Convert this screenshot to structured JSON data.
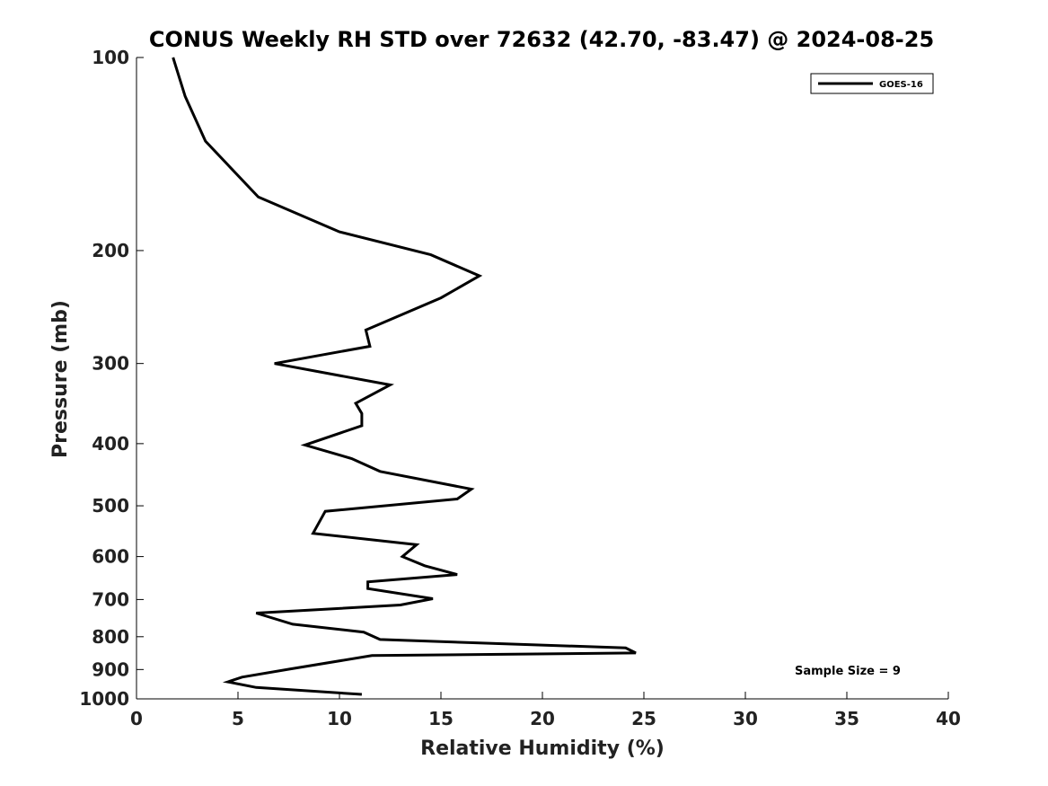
{
  "chart_data": {
    "type": "line",
    "title": "CONUS Weekly RH STD over 72632 (42.70, -83.47) @ 2024-08-25",
    "xlabel": "Relative Humidity (%)",
    "ylabel": "Pressure (mb)",
    "xlim": [
      0,
      40
    ],
    "ylim": [
      1000,
      100
    ],
    "yscale": "log",
    "x_ticks": [
      "0",
      "5",
      "10",
      "15",
      "20",
      "25",
      "30",
      "35",
      "40"
    ],
    "y_ticks": [
      "100",
      "200",
      "300",
      "400",
      "500",
      "600",
      "700",
      "800",
      "900",
      "1000"
    ],
    "grid": false,
    "legend": {
      "position": "top-right",
      "entries": [
        "GOES-16"
      ]
    },
    "annotation": "Sample Size = 9",
    "series": [
      {
        "name": "GOES-16",
        "color": "#000000",
        "points": [
          [
            1.8,
            100
          ],
          [
            2.4,
            115
          ],
          [
            3.4,
            135
          ],
          [
            6.0,
            165
          ],
          [
            10.0,
            187
          ],
          [
            14.5,
            203
          ],
          [
            16.9,
            219
          ],
          [
            15.0,
            237
          ],
          [
            11.3,
            266
          ],
          [
            11.5,
            282
          ],
          [
            6.8,
            300
          ],
          [
            12.5,
            324
          ],
          [
            10.8,
            346
          ],
          [
            11.1,
            359
          ],
          [
            11.1,
            375
          ],
          [
            8.3,
            402
          ],
          [
            10.6,
            422
          ],
          [
            12.0,
            442
          ],
          [
            16.5,
            471
          ],
          [
            15.8,
            488
          ],
          [
            9.3,
            510
          ],
          [
            8.7,
            552
          ],
          [
            13.8,
            575
          ],
          [
            13.1,
            600
          ],
          [
            14.2,
            620
          ],
          [
            15.8,
            640
          ],
          [
            11.4,
            657
          ],
          [
            11.4,
            673
          ],
          [
            14.6,
            698
          ],
          [
            13.0,
            714
          ],
          [
            5.9,
            735
          ],
          [
            7.7,
            765
          ],
          [
            11.2,
            787
          ],
          [
            12.0,
            808
          ],
          [
            24.1,
            833
          ],
          [
            24.6,
            848
          ],
          [
            11.6,
            856
          ],
          [
            7.6,
            898
          ],
          [
            5.2,
            925
          ],
          [
            4.5,
            941
          ],
          [
            5.9,
            960
          ],
          [
            11.1,
            984
          ]
        ]
      }
    ]
  }
}
